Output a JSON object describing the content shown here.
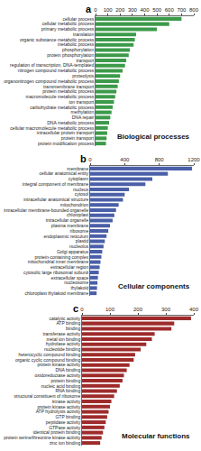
{
  "chart_data": [
    {
      "type": "bar",
      "title": "a",
      "annotations": [
        "Biological processes"
      ],
      "orientation": "horizontal",
      "grid": false,
      "color": "#3c9a4a",
      "categories": [
        "cellular process",
        "cellular metabolic process",
        "primary metabolic process",
        "translation",
        "organic substance metabolic process",
        "metabolic process",
        "phosphorylation",
        "protein phosphorylation",
        "transport",
        "regulation of transcription, DNA-templated",
        "nitrogen compound metabolic process",
        "proteolysis",
        "organonitrogen compound metabolic process",
        "transmembrane transport",
        "protein metabolic process",
        "macromolecule metabolic process",
        "ion transport",
        "carbohydrate metabolic process",
        "methylation",
        "DNA repair",
        "DNA metabolic process",
        "cellular macromolecule metabolic process",
        "intracellular protein transport",
        "protein transport",
        "protein modification process"
      ],
      "values": [
        700,
        600,
        500,
        330,
        320,
        310,
        280,
        270,
        250,
        240,
        220,
        200,
        190,
        180,
        170,
        160,
        150,
        140,
        130,
        120,
        110,
        100,
        95,
        90,
        85
      ],
      "xlim": [
        0,
        800
      ],
      "xticks": [
        0,
        100,
        200,
        300,
        400,
        500,
        600,
        700,
        800
      ]
    },
    {
      "type": "bar",
      "title": "b",
      "annotations": [
        "Cellular components"
      ],
      "orientation": "horizontal",
      "grid": false,
      "color": "#4a5fa8",
      "categories": [
        "membrane",
        "cellular anatomical entity",
        "cytoplasm",
        "integral component of membrane",
        "nucleus",
        "cytosol",
        "intracellular anatomical structure",
        "mitochondrion",
        "intracellular membrane-bounded organelle",
        "chloroplast",
        "intracellular organelle",
        "plasma membrane",
        "ribosome",
        "endoplasmic reticulum",
        "plastid",
        "nucleolus",
        "Golgi apparatus",
        "protein-containing complex",
        "mitochondrial inner membrane",
        "extracellular region",
        "cytosolic large ribosomal subunit",
        "extracellular space",
        "nucleosome",
        "thylakoid",
        "chloroplast thylakoid membrane"
      ],
      "values": [
        1180,
        900,
        720,
        640,
        450,
        400,
        380,
        330,
        300,
        280,
        260,
        230,
        210,
        190,
        170,
        155,
        140,
        130,
        120,
        110,
        100,
        90,
        85,
        80,
        75
      ],
      "xlim": [
        0,
        1200
      ],
      "xticks": [
        0,
        400,
        800,
        1200
      ]
    },
    {
      "type": "bar",
      "title": "c",
      "annotations": [
        "Molecular functions"
      ],
      "orientation": "horizontal",
      "grid": false,
      "color": "#9e2b2b",
      "categories": [
        "catalytic activity",
        "ATP binding",
        "binding",
        "transferase activity",
        "metal ion binding",
        "hydrolase activity",
        "nucleotide binding",
        "heterocyclic compound binding",
        "organic cyclic compound binding",
        "protein kinase activity",
        "DNA binding",
        "oxidoreductase activity",
        "protein binding",
        "nucleic acid binding",
        "RNA binding",
        "structural constituent of ribosome",
        "kinase activity",
        "protein kinase activity",
        "ATP hydrolysis activity",
        "GTP binding",
        "peptidase activity",
        "GTPase activity",
        "identical protein binding",
        "protein serine/threonine kinase activity",
        "zinc ion binding"
      ],
      "values": [
        390,
        330,
        320,
        260,
        250,
        230,
        210,
        190,
        185,
        170,
        160,
        150,
        145,
        135,
        125,
        115,
        105,
        100,
        95,
        90,
        85,
        80,
        75,
        70,
        65
      ],
      "xlim": [
        0,
        400
      ],
      "xticks": [
        0,
        100,
        200,
        300,
        400
      ]
    }
  ]
}
